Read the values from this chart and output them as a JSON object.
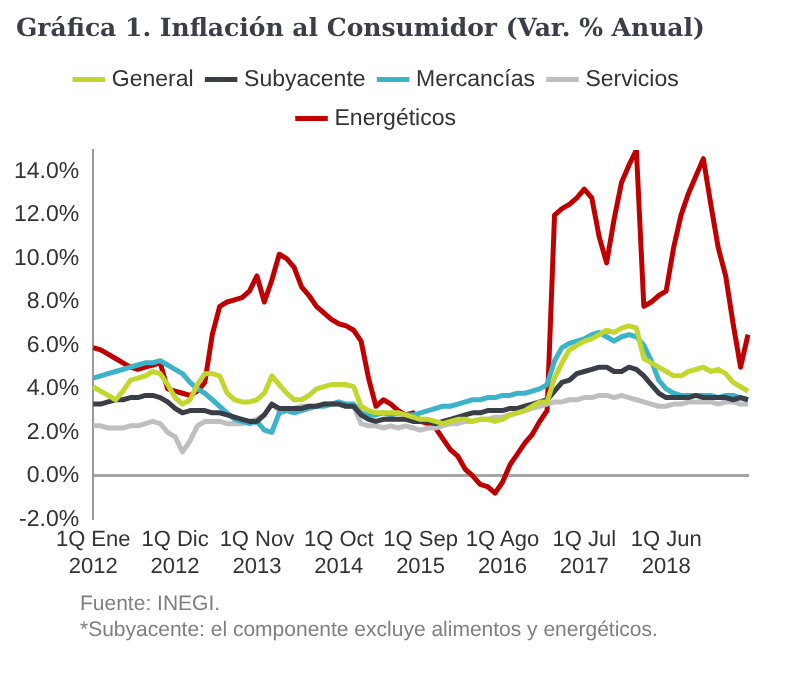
{
  "chart_data": {
    "type": "line",
    "title": "Gráfica 1. Inflación al Consumidor (Var. % Anual)",
    "categories": [
      "1Q Ene 2012",
      null,
      null,
      null,
      null,
      null,
      null,
      null,
      null,
      null,
      null,
      "1Q Dic 2012",
      null,
      null,
      null,
      null,
      null,
      null,
      null,
      null,
      null,
      null,
      "1Q Nov 2013",
      null,
      null,
      null,
      null,
      null,
      null,
      null,
      null,
      null,
      null,
      "1Q Oct 2014",
      null,
      null,
      null,
      null,
      null,
      null,
      null,
      null,
      null,
      null,
      "1Q Sep 2015",
      null,
      null,
      null,
      null,
      null,
      null,
      null,
      null,
      null,
      null,
      "1Q Ago 2016",
      null,
      null,
      null,
      null,
      null,
      null,
      null,
      null,
      null,
      null,
      "1Q Jul 2017",
      null,
      null,
      null,
      null,
      null,
      null,
      null,
      null,
      null,
      null,
      "1Q Jun 2018",
      null,
      null,
      null,
      null,
      null,
      null,
      null,
      null,
      null,
      null,
      null
    ],
    "series": [
      {
        "name": "General",
        "color": "#c3d62e",
        "values": [
          4.1,
          3.9,
          3.7,
          3.5,
          3.9,
          4.4,
          4.5,
          4.6,
          4.8,
          4.7,
          4.2,
          3.6,
          3.3,
          3.5,
          4.2,
          4.7,
          4.7,
          4.6,
          3.8,
          3.5,
          3.4,
          3.4,
          3.5,
          3.8,
          4.6,
          4.2,
          3.8,
          3.5,
          3.5,
          3.7,
          4.0,
          4.1,
          4.2,
          4.2,
          4.2,
          4.1,
          3.2,
          3.0,
          2.9,
          2.9,
          2.9,
          2.9,
          2.8,
          2.7,
          2.6,
          2.6,
          2.5,
          2.4,
          2.5,
          2.6,
          2.6,
          2.5,
          2.6,
          2.6,
          2.5,
          2.6,
          2.8,
          2.9,
          3.0,
          3.2,
          3.4,
          3.4,
          4.5,
          5.2,
          5.8,
          6.0,
          6.2,
          6.3,
          6.5,
          6.7,
          6.6,
          6.8,
          6.9,
          6.8,
          5.4,
          5.2,
          5.0,
          4.8,
          4.6,
          4.6,
          4.8,
          4.9,
          5.0,
          4.8,
          4.9,
          4.7,
          4.3,
          4.1,
          3.9
        ]
      },
      {
        "name": "Subyacente",
        "color": "#3a3f47",
        "values": [
          3.3,
          3.3,
          3.4,
          3.5,
          3.5,
          3.6,
          3.6,
          3.7,
          3.7,
          3.6,
          3.4,
          3.1,
          2.9,
          3.0,
          3.0,
          3.0,
          2.9,
          2.9,
          2.8,
          2.7,
          2.6,
          2.5,
          2.5,
          2.8,
          3.3,
          3.1,
          3.1,
          3.1,
          3.1,
          3.2,
          3.2,
          3.3,
          3.3,
          3.3,
          3.2,
          3.2,
          2.8,
          2.6,
          2.5,
          2.6,
          2.6,
          2.6,
          2.6,
          2.5,
          2.5,
          2.5,
          2.4,
          2.5,
          2.6,
          2.7,
          2.8,
          2.9,
          2.9,
          3.0,
          3.0,
          3.0,
          3.1,
          3.1,
          3.2,
          3.3,
          3.4,
          3.5,
          3.9,
          4.3,
          4.4,
          4.7,
          4.8,
          4.9,
          5.0,
          5.0,
          4.8,
          4.8,
          5.0,
          4.9,
          4.6,
          4.2,
          3.8,
          3.6,
          3.6,
          3.6,
          3.6,
          3.7,
          3.6,
          3.6,
          3.6,
          3.6,
          3.5,
          3.6,
          3.5
        ]
      },
      {
        "name": "Mercancías",
        "color": "#3bb3c9",
        "values": [
          4.5,
          4.6,
          4.7,
          4.8,
          4.9,
          5.0,
          5.1,
          5.2,
          5.2,
          5.3,
          5.1,
          4.9,
          4.7,
          4.3,
          4.0,
          3.8,
          3.5,
          3.2,
          2.9,
          2.6,
          2.5,
          2.4,
          2.5,
          2.1,
          2.0,
          2.9,
          3.0,
          2.9,
          3.0,
          3.1,
          3.2,
          3.2,
          3.3,
          3.4,
          3.3,
          3.3,
          2.9,
          2.8,
          2.8,
          2.9,
          2.8,
          2.9,
          2.8,
          2.8,
          2.9,
          3.0,
          3.1,
          3.2,
          3.2,
          3.3,
          3.4,
          3.5,
          3.5,
          3.6,
          3.6,
          3.7,
          3.7,
          3.8,
          3.8,
          3.9,
          4.0,
          4.2,
          5.3,
          5.9,
          6.1,
          6.2,
          6.3,
          6.5,
          6.6,
          6.4,
          6.2,
          6.4,
          6.5,
          6.4,
          6.0,
          5.3,
          4.4,
          4.0,
          3.8,
          3.7,
          3.7,
          3.7,
          3.7,
          3.7,
          3.6,
          3.7,
          3.7,
          3.6,
          3.5
        ]
      },
      {
        "name": "Servicios",
        "color": "#bfbfbf",
        "values": [
          2.3,
          2.3,
          2.2,
          2.2,
          2.2,
          2.3,
          2.3,
          2.4,
          2.5,
          2.4,
          2.0,
          1.8,
          1.1,
          1.6,
          2.3,
          2.5,
          2.5,
          2.5,
          2.4,
          2.4,
          2.4,
          2.5,
          2.6,
          2.8,
          3.3,
          3.0,
          3.1,
          3.1,
          3.2,
          3.2,
          3.2,
          3.3,
          3.3,
          3.3,
          3.2,
          3.2,
          2.4,
          2.3,
          2.3,
          2.2,
          2.3,
          2.2,
          2.3,
          2.2,
          2.1,
          2.2,
          2.2,
          2.3,
          2.4,
          2.4,
          2.5,
          2.5,
          2.6,
          2.6,
          2.7,
          2.7,
          2.8,
          2.9,
          3.0,
          3.1,
          3.2,
          3.3,
          3.4,
          3.4,
          3.5,
          3.5,
          3.6,
          3.6,
          3.7,
          3.7,
          3.6,
          3.7,
          3.6,
          3.5,
          3.4,
          3.3,
          3.2,
          3.2,
          3.3,
          3.3,
          3.4,
          3.4,
          3.4,
          3.4,
          3.3,
          3.4,
          3.4,
          3.3,
          3.3
        ]
      },
      {
        "name": "Energéticos",
        "color": "#c00000",
        "values": [
          5.9,
          5.8,
          5.6,
          5.4,
          5.2,
          5.0,
          4.9,
          5.0,
          5.1,
          5.2,
          4.0,
          3.9,
          3.8,
          3.7,
          3.9,
          4.3,
          6.5,
          7.8,
          8.0,
          8.1,
          8.2,
          8.5,
          9.2,
          8.0,
          9.0,
          10.2,
          10.0,
          9.6,
          8.7,
          8.3,
          7.8,
          7.5,
          7.2,
          7.0,
          6.9,
          6.7,
          6.2,
          4.5,
          3.2,
          3.5,
          3.3,
          3.0,
          2.8,
          2.9,
          2.5,
          2.4,
          2.2,
          1.7,
          1.2,
          0.9,
          0.3,
          0.0,
          -0.4,
          -0.5,
          -0.8,
          -0.3,
          0.5,
          1.0,
          1.5,
          1.9,
          2.5,
          3.0,
          12.0,
          12.3,
          12.5,
          12.8,
          13.2,
          12.8,
          11.0,
          9.8,
          11.8,
          13.5,
          14.3,
          15.0,
          7.8,
          8.0,
          8.3,
          8.5,
          10.5,
          12.0,
          13.0,
          13.8,
          14.6,
          12.5,
          10.5,
          9.2,
          7.0,
          5.0,
          6.5
        ]
      }
    ],
    "ylim": [
      -2,
      15
    ],
    "yticks": [
      {
        "value": -2,
        "label": "-2.0%"
      },
      {
        "value": 0,
        "label": "0.0%"
      },
      {
        "value": 2,
        "label": "2.0%"
      },
      {
        "value": 4,
        "label": "4.0%"
      },
      {
        "value": 6,
        "label": "6.0%"
      },
      {
        "value": 8,
        "label": "8.0%"
      },
      {
        "value": 10,
        "label": "10.0%"
      },
      {
        "value": 12,
        "label": "12.0%"
      },
      {
        "value": 14,
        "label": "14.0%"
      }
    ],
    "grid": false,
    "legend": "top",
    "marker": "none",
    "line_style": "solid",
    "annotations": [
      "Fuente: INEGI.",
      "*Subyacente: el componente excluye alimentos y energéticos."
    ]
  }
}
